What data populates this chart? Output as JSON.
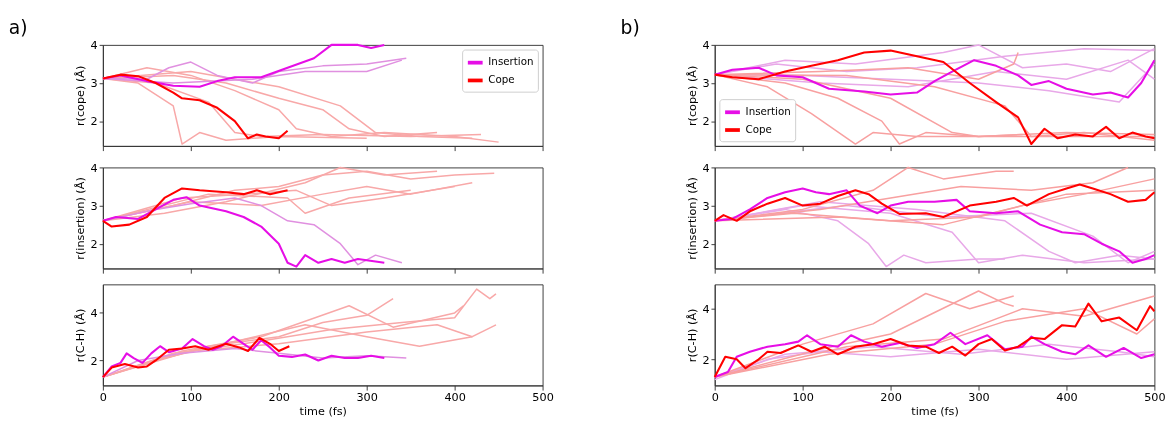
{
  "chart_data": [
    {
      "type": "line",
      "title": "a)",
      "ylabel": "r(cope) (Å)",
      "xlim": [
        0,
        500
      ],
      "xticks": [
        0,
        100,
        200,
        300,
        400,
        500
      ],
      "ylim": [
        1.35,
        4
      ],
      "yticks": [
        2,
        3,
        4
      ],
      "tick_labels": "y",
      "grid": false,
      "legend": "top right",
      "series": [
        {
          "color": "#f8a8a8",
          "x": [
            0,
            40,
            80,
            90,
            110,
            140,
            200,
            300
          ],
          "values": [
            3.12,
            3.0,
            2.4,
            1.4,
            1.7,
            1.5,
            1.6,
            1.55
          ]
        },
        {
          "color": "#f8a8a8",
          "x": [
            0,
            50,
            100,
            150,
            200,
            220,
            260,
            320,
            400,
            450
          ],
          "values": [
            3.12,
            3.4,
            3.2,
            2.8,
            2.3,
            1.8,
            1.6,
            1.7,
            1.6,
            1.45
          ]
        },
        {
          "color": "#f8a8a8",
          "x": [
            0,
            60,
            120,
            150,
            180,
            250,
            350,
            430
          ],
          "values": [
            3.12,
            3.0,
            2.5,
            1.7,
            1.6,
            1.65,
            1.6,
            1.65
          ]
        },
        {
          "color": "#f8a8a8",
          "x": [
            0,
            80,
            140,
            200,
            250,
            280,
            320,
            380
          ],
          "values": [
            3.12,
            3.2,
            3.0,
            2.6,
            2.3,
            1.8,
            1.6,
            1.7
          ]
        },
        {
          "color": "#f8a8a8",
          "x": [
            0,
            100,
            200,
            270,
            310,
            360,
            420
          ],
          "values": [
            3.12,
            3.3,
            2.9,
            2.4,
            1.7,
            1.6,
            1.55
          ]
        },
        {
          "color": "#e090e0",
          "x": [
            0,
            50,
            75,
            100,
            130,
            170,
            200,
            250,
            300,
            345
          ],
          "values": [
            3.12,
            3.1,
            3.4,
            3.55,
            3.2,
            3.0,
            3.3,
            3.45,
            3.5,
            3.65
          ]
        },
        {
          "color": "#e090e0",
          "x": [
            0,
            80,
            170,
            230,
            300,
            340
          ],
          "values": [
            3.12,
            3.0,
            3.1,
            3.3,
            3.3,
            3.6
          ]
        },
        {
          "name": "Insertion",
          "color": "#e60ee6",
          "x": [
            0,
            20,
            50,
            80,
            110,
            130,
            150,
            180,
            210,
            240,
            260,
            290,
            305,
            320
          ],
          "values": [
            3.12,
            3.2,
            3.05,
            2.93,
            2.9,
            3.05,
            3.15,
            3.15,
            3.4,
            3.65,
            4.0,
            4.0,
            3.92,
            4.0
          ]
        },
        {
          "name": "Cope",
          "color": "#ff0000",
          "x": [
            0,
            20,
            40,
            60,
            80,
            90,
            110,
            130,
            150,
            165,
            175,
            185,
            200,
            210
          ],
          "values": [
            3.12,
            3.22,
            3.18,
            3.0,
            2.75,
            2.6,
            2.55,
            2.35,
            2.0,
            1.55,
            1.65,
            1.6,
            1.55,
            1.75
          ]
        }
      ]
    },
    {
      "type": "line",
      "ylabel": "r(insertion) (Å)",
      "xlim": [
        0,
        500
      ],
      "xticks": [
        0,
        100,
        200,
        300,
        400,
        500
      ],
      "ylim": [
        1.35,
        4
      ],
      "yticks": [
        2,
        3,
        4
      ],
      "tick_labels": "y",
      "grid": false,
      "series": [
        {
          "color": "#f8a8a8",
          "x": [
            0,
            80,
            150,
            200,
            250,
            300,
            350,
            400,
            445
          ],
          "values": [
            2.6,
            3.0,
            3.4,
            3.5,
            3.8,
            3.9,
            3.7,
            3.8,
            3.85
          ]
        },
        {
          "color": "#f8a8a8",
          "x": [
            0,
            100,
            180,
            250,
            300,
            350,
            420
          ],
          "values": [
            2.6,
            3.1,
            3.0,
            3.3,
            3.5,
            3.3,
            3.6
          ]
        },
        {
          "color": "#f8a8a8",
          "x": [
            0,
            90,
            160,
            220,
            260,
            320,
            400
          ],
          "values": [
            2.6,
            3.2,
            3.3,
            3.4,
            3.0,
            3.2,
            3.5
          ]
        },
        {
          "color": "#f8a8a8",
          "x": [
            0,
            70,
            140,
            230,
            270,
            320,
            380
          ],
          "values": [
            2.6,
            2.8,
            3.1,
            3.6,
            4.0,
            3.8,
            3.9
          ]
        },
        {
          "color": "#f8a8a8",
          "x": [
            0,
            120,
            210,
            230,
            280,
            350
          ],
          "values": [
            2.6,
            3.3,
            3.2,
            2.8,
            3.2,
            3.4
          ]
        },
        {
          "color": "#e090e0",
          "x": [
            0,
            60,
            100,
            150,
            180,
            210,
            240,
            270,
            290,
            310,
            340
          ],
          "values": [
            2.6,
            2.9,
            3.05,
            3.2,
            3.0,
            2.6,
            2.5,
            2.0,
            1.45,
            1.7,
            1.5
          ]
        },
        {
          "color": "#e60ee6",
          "x": [
            0,
            15,
            40,
            60,
            80,
            95,
            110,
            140,
            160,
            180,
            200,
            210,
            220,
            230,
            245,
            260,
            275,
            290,
            320
          ],
          "values": [
            2.6,
            2.7,
            2.65,
            2.9,
            3.15,
            3.22,
            3.0,
            2.85,
            2.7,
            2.45,
            2.0,
            1.5,
            1.4,
            1.7,
            1.5,
            1.6,
            1.5,
            1.6,
            1.5
          ]
        },
        {
          "color": "#ff0000",
          "x": [
            0,
            10,
            30,
            50,
            70,
            90,
            110,
            140,
            160,
            175,
            190,
            210
          ],
          "values": [
            2.6,
            2.45,
            2.5,
            2.7,
            3.2,
            3.45,
            3.4,
            3.35,
            3.3,
            3.4,
            3.3,
            3.4
          ]
        }
      ]
    },
    {
      "type": "line",
      "xlabel": "time (fs)",
      "ylabel": "r(C-H) (Å)",
      "xlim": [
        0,
        500
      ],
      "xticks": [
        0,
        100,
        200,
        300,
        400,
        500
      ],
      "ylim": [
        0.95,
        5.2
      ],
      "yticks": [
        2,
        4
      ],
      "grid": false,
      "series": [
        {
          "color": "#f8a8a8",
          "x": [
            0,
            60,
            120,
            200,
            250,
            300,
            330
          ],
          "values": [
            1.3,
            2.0,
            2.6,
            3.0,
            3.6,
            3.9,
            4.6
          ]
        },
        {
          "color": "#f8a8a8",
          "x": [
            0,
            80,
            160,
            260,
            340,
            400,
            425,
            440,
            447
          ],
          "values": [
            1.3,
            2.3,
            2.7,
            3.3,
            3.6,
            3.8,
            5.0,
            4.6,
            4.8
          ]
        },
        {
          "color": "#f8a8a8",
          "x": [
            0,
            100,
            200,
            300,
            380,
            420,
            447
          ],
          "values": [
            1.3,
            2.4,
            2.7,
            3.2,
            3.5,
            3.0,
            3.5
          ]
        },
        {
          "color": "#f8a8a8",
          "x": [
            0,
            70,
            150,
            230,
            300,
            360,
            420
          ],
          "values": [
            1.3,
            2.1,
            2.8,
            3.5,
            3.0,
            2.6,
            3.0
          ]
        },
        {
          "color": "#f8a8a8",
          "x": [
            0,
            90,
            180,
            280,
            330,
            400,
            410
          ],
          "values": [
            1.3,
            2.4,
            3.0,
            4.3,
            3.4,
            4.0,
            4.3
          ]
        },
        {
          "color": "#e090e0",
          "x": [
            0,
            40,
            90,
            150,
            200,
            250,
            300,
            345
          ],
          "values": [
            1.3,
            2.0,
            2.3,
            2.5,
            2.3,
            2.1,
            2.2,
            2.1
          ]
        },
        {
          "color": "#e60ee6",
          "x": [
            0,
            10,
            20,
            27,
            35,
            45,
            55,
            65,
            75,
            90,
            102,
            115,
            125,
            135,
            148,
            160,
            170,
            180,
            190,
            200,
            215,
            230,
            245,
            260,
            275,
            290,
            305,
            320
          ],
          "values": [
            1.3,
            1.75,
            1.9,
            2.3,
            2.1,
            1.9,
            2.3,
            2.6,
            2.35,
            2.5,
            2.9,
            2.6,
            2.45,
            2.6,
            3.0,
            2.7,
            2.45,
            2.85,
            2.55,
            2.2,
            2.15,
            2.25,
            2.0,
            2.2,
            2.1,
            2.1,
            2.2,
            2.1
          ]
        },
        {
          "color": "#ff0000",
          "x": [
            0,
            10,
            25,
            40,
            50,
            60,
            75,
            90,
            105,
            120,
            140,
            155,
            165,
            178,
            190,
            200,
            212
          ],
          "values": [
            1.3,
            1.7,
            1.85,
            1.7,
            1.75,
            2.0,
            2.45,
            2.5,
            2.6,
            2.45,
            2.7,
            2.55,
            2.4,
            2.95,
            2.7,
            2.4,
            2.6
          ]
        }
      ]
    },
    {
      "type": "line",
      "title": "b)",
      "ylabel": "r(cope) (Å)",
      "xlim": [
        0,
        500
      ],
      "xticks": [
        0,
        100,
        200,
        300,
        400,
        500
      ],
      "ylim": [
        1.35,
        4
      ],
      "yticks": [
        2,
        3,
        4
      ],
      "tick_labels": "y",
      "grid": false,
      "legend": "bottom left",
      "series": [
        {
          "color": "#e8a8e8",
          "x": [
            0,
            80,
            160,
            260,
            300,
            350,
            400,
            450,
            500
          ],
          "values": [
            3.22,
            3.6,
            3.5,
            3.8,
            4.0,
            3.4,
            3.5,
            3.3,
            3.9
          ]
        },
        {
          "color": "#e8a8e8",
          "x": [
            0,
            100,
            200,
            300,
            380,
            460,
            500
          ],
          "values": [
            3.22,
            3.2,
            3.1,
            3.0,
            2.8,
            2.5,
            3.5
          ]
        },
        {
          "color": "#e8a8e8",
          "x": [
            0,
            70,
            150,
            230,
            330,
            420,
            500
          ],
          "values": [
            3.22,
            3.5,
            3.3,
            3.4,
            3.7,
            3.9,
            3.85
          ]
        },
        {
          "color": "#e8a8e8",
          "x": [
            0,
            120,
            220,
            320,
            400,
            470,
            500
          ],
          "values": [
            3.22,
            3.0,
            2.9,
            3.3,
            3.1,
            3.6,
            3.1
          ]
        },
        {
          "color": "#f8a0a0",
          "x": [
            0,
            60,
            110,
            160,
            180,
            230,
            300,
            350
          ],
          "values": [
            3.22,
            2.9,
            2.2,
            1.4,
            1.7,
            1.6,
            1.6,
            1.65
          ]
        },
        {
          "color": "#f8a0a0",
          "x": [
            0,
            80,
            140,
            190,
            210,
            240,
            300,
            400,
            500
          ],
          "values": [
            3.22,
            3.0,
            2.6,
            2.0,
            1.4,
            1.7,
            1.6,
            1.6,
            1.6
          ]
        },
        {
          "color": "#f8a0a0",
          "x": [
            0,
            100,
            200,
            270,
            300,
            400,
            500
          ],
          "values": [
            3.22,
            3.1,
            2.6,
            1.7,
            1.6,
            1.7,
            1.65
          ]
        },
        {
          "color": "#f8a0a0",
          "x": [
            0,
            150,
            250,
            330,
            360,
            420,
            500
          ],
          "values": [
            3.22,
            3.2,
            2.9,
            2.4,
            1.6,
            1.7,
            1.5
          ]
        },
        {
          "color": "#f8a0a0",
          "x": [
            0,
            120,
            220,
            300,
            340,
            345
          ],
          "values": [
            3.22,
            3.3,
            3.4,
            3.1,
            3.5,
            3.8
          ]
        },
        {
          "name": "Insertion",
          "color": "#e60ee6",
          "x": [
            0,
            20,
            50,
            70,
            100,
            130,
            170,
            200,
            230,
            250,
            270,
            295,
            320,
            345,
            360,
            380,
            400,
            430,
            450,
            470,
            485,
            500
          ],
          "values": [
            3.22,
            3.35,
            3.4,
            3.2,
            3.15,
            2.85,
            2.78,
            2.7,
            2.75,
            3.05,
            3.3,
            3.6,
            3.45,
            3.2,
            2.95,
            3.05,
            2.85,
            2.7,
            2.75,
            2.62,
            3.0,
            3.6
          ]
        },
        {
          "name": "Cope",
          "color": "#ff0000",
          "x": [
            0,
            20,
            50,
            80,
            110,
            140,
            170,
            200,
            230,
            260,
            290,
            320,
            345,
            360,
            375,
            390,
            410,
            430,
            445,
            460,
            475,
            490,
            500
          ],
          "values": [
            3.22,
            3.15,
            3.1,
            3.3,
            3.45,
            3.6,
            3.8,
            3.85,
            3.7,
            3.55,
            3.0,
            2.5,
            2.1,
            1.4,
            1.8,
            1.55,
            1.65,
            1.6,
            1.85,
            1.55,
            1.7,
            1.6,
            1.55
          ]
        }
      ]
    },
    {
      "type": "line",
      "ylabel": "r(insertion) (Å)",
      "xlim": [
        0,
        500
      ],
      "xticks": [
        0,
        100,
        200,
        300,
        400,
        500
      ],
      "ylim": [
        1.35,
        4
      ],
      "yticks": [
        2,
        3,
        4
      ],
      "tick_labels": "y",
      "grid": false,
      "series": [
        {
          "color": "#e8a8e8",
          "x": [
            0,
            80,
            140,
            175,
            195,
            215,
            240,
            300,
            330
          ],
          "values": [
            2.6,
            2.9,
            2.6,
            2.0,
            1.4,
            1.7,
            1.5,
            1.6,
            1.6
          ]
        },
        {
          "color": "#e8a8e8",
          "x": [
            0,
            100,
            200,
            270,
            300,
            350,
            420,
            500
          ],
          "values": [
            2.6,
            3.0,
            2.8,
            2.3,
            1.5,
            1.7,
            1.5,
            1.6
          ]
        },
        {
          "color": "#e8a8e8",
          "x": [
            0,
            120,
            230,
            330,
            380,
            410,
            460,
            500
          ],
          "values": [
            2.6,
            3.1,
            2.9,
            2.6,
            1.8,
            1.5,
            1.7,
            1.6
          ]
        },
        {
          "color": "#e8a8e8",
          "x": [
            0,
            150,
            260,
            360,
            430,
            470,
            500
          ],
          "values": [
            2.6,
            3.0,
            2.7,
            2.8,
            2.2,
            1.5,
            1.8
          ]
        },
        {
          "color": "#f8a0a0",
          "x": [
            0,
            100,
            180,
            220,
            260,
            320,
            340
          ],
          "values": [
            2.6,
            2.9,
            3.4,
            4.0,
            3.7,
            3.9,
            3.9
          ]
        },
        {
          "color": "#f8a0a0",
          "x": [
            0,
            120,
            200,
            280,
            360,
            430,
            470
          ],
          "values": [
            2.6,
            2.9,
            3.2,
            3.5,
            3.4,
            3.6,
            4.0
          ]
        },
        {
          "color": "#f8a0a0",
          "x": [
            0,
            140,
            260,
            350,
            420,
            500
          ],
          "values": [
            2.6,
            2.7,
            2.5,
            3.0,
            3.3,
            3.7
          ]
        },
        {
          "color": "#f8a0a0",
          "x": [
            0,
            90,
            200,
            300,
            400,
            500
          ],
          "values": [
            2.6,
            2.8,
            2.6,
            2.7,
            3.3,
            3.4
          ]
        },
        {
          "color": "#e60ee6",
          "x": [
            0,
            20,
            40,
            60,
            80,
            100,
            115,
            130,
            150,
            165,
            185,
            200,
            220,
            250,
            275,
            290,
            320,
            345,
            370,
            395,
            420,
            440,
            460,
            475,
            490,
            500
          ],
          "values": [
            2.6,
            2.65,
            2.9,
            3.2,
            3.35,
            3.45,
            3.35,
            3.3,
            3.4,
            3.0,
            2.8,
            3.0,
            3.1,
            3.1,
            3.15,
            2.85,
            2.8,
            2.85,
            2.5,
            2.3,
            2.25,
            2.0,
            1.8,
            1.5,
            1.6,
            1.7
          ]
        },
        {
          "color": "#ff0000",
          "x": [
            0,
            10,
            25,
            40,
            60,
            80,
            100,
            120,
            140,
            160,
            175,
            190,
            210,
            240,
            260,
            290,
            320,
            340,
            355,
            380,
            400,
            415,
            430,
            450,
            470,
            490,
            500
          ],
          "values": [
            2.6,
            2.75,
            2.6,
            2.85,
            3.05,
            3.2,
            3.0,
            3.05,
            3.25,
            3.4,
            3.3,
            3.05,
            2.78,
            2.8,
            2.7,
            3.0,
            3.1,
            3.2,
            3.0,
            3.3,
            3.45,
            3.55,
            3.45,
            3.3,
            3.1,
            3.15,
            3.35
          ]
        }
      ]
    },
    {
      "type": "line",
      "xlabel": "time (fs)",
      "ylabel": "r(C-H) (Å)",
      "xlim": [
        0,
        500
      ],
      "xticks": [
        0,
        100,
        200,
        300,
        400,
        500
      ],
      "ylim": [
        0.97,
        4.96
      ],
      "yticks": [
        2,
        4
      ],
      "grid": false,
      "series": [
        {
          "color": "#e8a8e8",
          "x": [
            0,
            60,
            120,
            200,
            300,
            400,
            500
          ],
          "values": [
            1.2,
            2.0,
            2.3,
            2.1,
            2.4,
            2.0,
            2.3
          ]
        },
        {
          "color": "#e8a8e8",
          "x": [
            0,
            80,
            180,
            280,
            380,
            460,
            500
          ],
          "values": [
            1.3,
            2.2,
            2.5,
            2.2,
            2.6,
            2.3,
            2.1
          ]
        },
        {
          "color": "#f8a0a0",
          "x": [
            0,
            100,
            180,
            240,
            290,
            340
          ],
          "values": [
            1.3,
            2.6,
            3.4,
            4.6,
            4.0,
            4.5
          ]
        },
        {
          "color": "#f8a0a0",
          "x": [
            0,
            120,
            200,
            300,
            330,
            340
          ],
          "values": [
            1.3,
            2.4,
            3.0,
            4.7,
            4.2,
            4.1
          ]
        },
        {
          "color": "#f8a0a0",
          "x": [
            0,
            150,
            260,
            350,
            420,
            500
          ],
          "values": [
            1.3,
            2.5,
            2.8,
            4.0,
            3.7,
            4.5
          ]
        },
        {
          "color": "#f8a0a0",
          "x": [
            0,
            130,
            250,
            330,
            420,
            480,
            500
          ],
          "values": [
            1.3,
            2.2,
            2.6,
            3.5,
            4.0,
            3.0,
            3.6
          ]
        },
        {
          "color": "#e60ee6",
          "x": [
            0,
            15,
            25,
            40,
            60,
            80,
            95,
            105,
            120,
            140,
            155,
            170,
            190,
            210,
            230,
            250,
            268,
            285,
            310,
            330,
            350,
            360,
            375,
            395,
            410,
            425,
            445,
            465,
            485,
            500
          ],
          "values": [
            1.3,
            1.5,
            2.1,
            2.3,
            2.5,
            2.6,
            2.7,
            2.95,
            2.6,
            2.5,
            2.95,
            2.7,
            2.5,
            2.65,
            2.45,
            2.6,
            3.05,
            2.6,
            2.95,
            2.4,
            2.5,
            2.9,
            2.6,
            2.3,
            2.2,
            2.55,
            2.1,
            2.45,
            2.05,
            2.2
          ]
        },
        {
          "color": "#ff0000",
          "x": [
            0,
            12,
            25,
            35,
            50,
            60,
            75,
            95,
            110,
            125,
            140,
            160,
            180,
            200,
            220,
            240,
            255,
            270,
            285,
            300,
            315,
            330,
            345,
            360,
            375,
            395,
            410,
            425,
            440,
            460,
            480,
            495,
            500
          ],
          "values": [
            1.3,
            2.1,
            2.0,
            1.65,
            2.0,
            2.3,
            2.25,
            2.55,
            2.3,
            2.5,
            2.2,
            2.5,
            2.6,
            2.8,
            2.55,
            2.5,
            2.25,
            2.5,
            2.15,
            2.6,
            2.8,
            2.35,
            2.5,
            2.85,
            2.8,
            3.35,
            3.3,
            4.2,
            3.5,
            3.65,
            3.15,
            4.1,
            3.9
          ]
        }
      ]
    }
  ]
}
